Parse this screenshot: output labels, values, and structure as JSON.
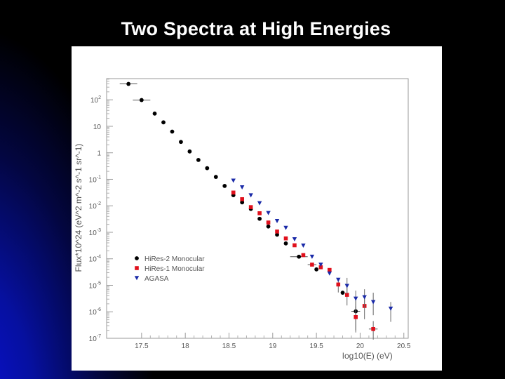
{
  "slide": {
    "title": "Two Spectra at High Energies"
  },
  "colors": {
    "background": "#000000",
    "gradient_blue": "#0610a0",
    "title_text": "#ffffff",
    "panel": "#ffffff",
    "hires2": "#000000",
    "hires1": "#e0101c",
    "agasa": "#1a2aa8"
  },
  "chart_data": {
    "type": "scatter",
    "title": "",
    "xlabel": "log10(E) (eV)",
    "ylabel": "Flux*10^24 (eV^2 m^-2 s^-1 sr^-1)",
    "xlim": [
      17.1,
      20.55
    ],
    "ylim_log10": [
      -7,
      2.8
    ],
    "y_scale": "log",
    "grid": false,
    "legend_position": "lower-left",
    "x_ticks": [
      "17.5",
      "18",
      "18.5",
      "19",
      "19.5",
      "20",
      "20.5"
    ],
    "y_ticks": [
      "10^2",
      "10",
      "1",
      "10^-1",
      "10^-2",
      "10^-3",
      "10^-4",
      "10^-5",
      "10^-6",
      "10^-7"
    ],
    "legend": [
      "HiRes-2 Monocular",
      "HiRes-1 Monocular",
      "AGASA"
    ],
    "series": [
      {
        "name": "HiRes-2 Monocular",
        "marker": "circle",
        "points": [
          {
            "x": 17.35,
            "y": 2.6,
            "xerr": 0.1
          },
          {
            "x": 17.5,
            "y": 1.99,
            "xerr": 0.1
          },
          {
            "x": 17.65,
            "y": 1.48
          },
          {
            "x": 17.75,
            "y": 1.15
          },
          {
            "x": 17.85,
            "y": 0.8
          },
          {
            "x": 17.95,
            "y": 0.41
          },
          {
            "x": 18.05,
            "y": 0.05
          },
          {
            "x": 18.15,
            "y": -0.27
          },
          {
            "x": 18.25,
            "y": -0.58
          },
          {
            "x": 18.35,
            "y": -0.91
          },
          {
            "x": 18.45,
            "y": -1.25
          },
          {
            "x": 18.55,
            "y": -1.6
          },
          {
            "x": 18.65,
            "y": -1.87
          },
          {
            "x": 18.75,
            "y": -2.12
          },
          {
            "x": 18.85,
            "y": -2.49
          },
          {
            "x": 18.95,
            "y": -2.78
          },
          {
            "x": 19.05,
            "y": -3.09
          },
          {
            "x": 19.15,
            "y": -3.42
          },
          {
            "x": 19.3,
            "y": -3.92,
            "xerr": 0.1
          },
          {
            "x": 19.5,
            "y": -4.4
          },
          {
            "x": 19.8,
            "y": -5.28
          },
          {
            "x": 19.95,
            "y": -5.98,
            "xerr": 0.05,
            "yerr": [
              0.45,
              0.8
            ]
          }
        ]
      },
      {
        "name": "HiRes-1 Monocular",
        "marker": "square",
        "points": [
          {
            "x": 18.55,
            "y": -1.5
          },
          {
            "x": 18.65,
            "y": -1.75
          },
          {
            "x": 18.75,
            "y": -2.05
          },
          {
            "x": 18.85,
            "y": -2.28
          },
          {
            "x": 18.95,
            "y": -2.63
          },
          {
            "x": 19.05,
            "y": -2.97
          },
          {
            "x": 19.15,
            "y": -3.23
          },
          {
            "x": 19.25,
            "y": -3.49
          },
          {
            "x": 19.35,
            "y": -3.86
          },
          {
            "x": 19.45,
            "y": -4.22,
            "xerr": 0.05
          },
          {
            "x": 19.55,
            "y": -4.32
          },
          {
            "x": 19.65,
            "y": -4.42
          },
          {
            "x": 19.75,
            "y": -4.97,
            "yerr": [
              0.25,
              0.3
            ]
          },
          {
            "x": 19.85,
            "y": -5.36,
            "yerr": [
              0.3,
              0.4
            ]
          },
          {
            "x": 19.95,
            "y": -6.2,
            "yerr": [
              0.4,
              0.5
            ]
          },
          {
            "x": 20.05,
            "y": -5.78,
            "yerr": [
              0.3,
              0.5
            ]
          },
          {
            "x": 20.15,
            "y": -6.65,
            "xerr": 0.05,
            "yerr": [
              0.3,
              0.4
            ]
          }
        ]
      },
      {
        "name": "AGASA",
        "marker": "triangle-down",
        "points": [
          {
            "x": 18.55,
            "y": -1.05
          },
          {
            "x": 18.65,
            "y": -1.3
          },
          {
            "x": 18.75,
            "y": -1.6
          },
          {
            "x": 18.85,
            "y": -1.9
          },
          {
            "x": 18.95,
            "y": -2.27
          },
          {
            "x": 19.05,
            "y": -2.57
          },
          {
            "x": 19.15,
            "y": -2.83
          },
          {
            "x": 19.25,
            "y": -3.26
          },
          {
            "x": 19.35,
            "y": -3.5
          },
          {
            "x": 19.45,
            "y": -3.92
          },
          {
            "x": 19.55,
            "y": -4.22
          },
          {
            "x": 19.65,
            "y": -4.55
          },
          {
            "x": 19.75,
            "y": -4.79
          },
          {
            "x": 19.85,
            "y": -5.02,
            "yerr": [
              0.3,
              0.3
            ]
          },
          {
            "x": 19.95,
            "y": -5.5,
            "yerr": [
              0.3,
              0.4
            ]
          },
          {
            "x": 20.05,
            "y": -5.45,
            "yerr": [
              0.3,
              0.4
            ]
          },
          {
            "x": 20.15,
            "y": -5.63,
            "yerr": [
              0.35,
              0.5
            ]
          },
          {
            "x": 20.35,
            "y": -5.88,
            "yerr": [
              0.25,
              0.5
            ]
          }
        ]
      }
    ]
  }
}
